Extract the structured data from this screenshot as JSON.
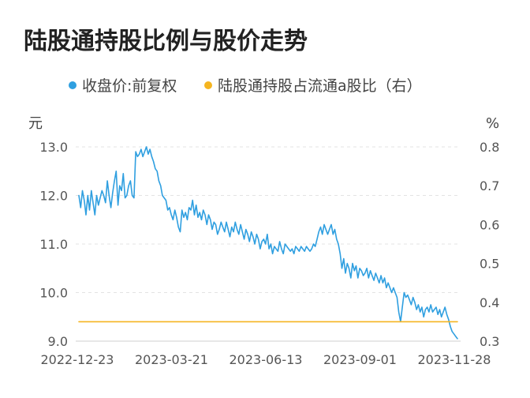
{
  "chart_data": {
    "type": "line",
    "title": "陆股通持股比例与股价走势",
    "legend_position": "top",
    "grid": true,
    "x_axis": {
      "ticks": [
        "2022-12-23",
        "2023-03-21",
        "2023-06-13",
        "2023-09-01",
        "2023-11-28"
      ]
    },
    "y_left": {
      "unit": "元",
      "ticks": [
        "13.0",
        "12.0",
        "11.0",
        "10.0",
        "9.0"
      ],
      "ylim": [
        9.0,
        13.0
      ]
    },
    "y_right": {
      "unit": "%",
      "ticks": [
        "0.8",
        "0.7",
        "0.6",
        "0.5",
        "0.4",
        "0.3"
      ],
      "ylim": [
        0.3,
        0.8
      ]
    },
    "series": [
      {
        "name": "收盘价:前复权",
        "axis": "left",
        "color": "#2f9fe0",
        "values": [
          12.0,
          11.75,
          12.1,
          11.9,
          11.6,
          12.0,
          11.7,
          12.1,
          11.85,
          11.6,
          12.0,
          11.8,
          11.95,
          12.1,
          12.0,
          11.85,
          12.3,
          12.0,
          11.75,
          12.05,
          12.3,
          12.5,
          11.8,
          12.2,
          12.1,
          12.45,
          11.95,
          12.0,
          12.2,
          12.3,
          12.0,
          11.95,
          12.9,
          12.8,
          12.85,
          12.95,
          12.8,
          12.9,
          13.0,
          12.85,
          12.95,
          12.8,
          12.7,
          12.55,
          12.5,
          12.3,
          12.2,
          12.0,
          11.95,
          11.9,
          11.7,
          11.75,
          11.6,
          11.5,
          11.7,
          11.55,
          11.35,
          11.25,
          11.7,
          11.55,
          11.65,
          11.5,
          11.75,
          11.7,
          11.9,
          11.6,
          11.8,
          11.55,
          11.65,
          11.5,
          11.7,
          11.6,
          11.4,
          11.6,
          11.5,
          11.3,
          11.45,
          11.4,
          11.2,
          11.3,
          11.45,
          11.35,
          11.25,
          11.45,
          11.3,
          11.15,
          11.35,
          11.25,
          11.45,
          11.3,
          11.2,
          11.4,
          11.25,
          11.1,
          11.3,
          11.2,
          11.05,
          11.25,
          11.15,
          11.0,
          11.2,
          11.1,
          10.9,
          11.05,
          11.1,
          11.0,
          11.2,
          10.9,
          11.0,
          10.8,
          10.95,
          10.9,
          10.85,
          11.05,
          10.9,
          10.8,
          11.0,
          10.95,
          10.9,
          10.85,
          10.9,
          10.8,
          10.95,
          10.9,
          10.85,
          10.95,
          10.9,
          10.85,
          10.95,
          10.9,
          10.85,
          10.9,
          11.0,
          10.95,
          11.1,
          11.25,
          11.35,
          11.2,
          11.4,
          11.3,
          11.2,
          11.3,
          11.4,
          11.2,
          11.3,
          11.1,
          11.0,
          10.8,
          10.5,
          10.7,
          10.4,
          10.6,
          10.5,
          10.3,
          10.6,
          10.45,
          10.55,
          10.3,
          10.5,
          10.45,
          10.35,
          10.4,
          10.5,
          10.3,
          10.45,
          10.35,
          10.25,
          10.4,
          10.3,
          10.2,
          10.35,
          10.2,
          10.3,
          10.1,
          10.2,
          10.1,
          10.0,
          10.1,
          10.0,
          9.9,
          9.6,
          9.4,
          9.7,
          10.0,
          9.9,
          9.95,
          9.85,
          9.75,
          9.9,
          9.8,
          9.65,
          9.75,
          9.6,
          9.7,
          9.5,
          9.65,
          9.7,
          9.6,
          9.75,
          9.6,
          9.65,
          9.7,
          9.55,
          9.65,
          9.5,
          9.6,
          9.7,
          9.55,
          9.45,
          9.3,
          9.2,
          9.15,
          9.1,
          9.05
        ]
      },
      {
        "name": "陆股通持股占流通a股比（右）",
        "axis": "right",
        "color": "#f5b520",
        "values": [
          0.35,
          0.35,
          0.35,
          0.35,
          0.35,
          0.35,
          0.35,
          0.35,
          0.35,
          0.35,
          0.35,
          0.35,
          0.35,
          0.35,
          0.35,
          0.35,
          0.35,
          0.35,
          0.35,
          0.35,
          0.35,
          0.35,
          0.35,
          0.35,
          0.35,
          0.35,
          0.35,
          0.35,
          0.35,
          0.35,
          0.35,
          0.35,
          0.35,
          0.35,
          0.35,
          0.35,
          0.35,
          0.35,
          0.35,
          0.35,
          0.35,
          0.35,
          0.35,
          0.35,
          0.35,
          0.35,
          0.35,
          0.35,
          0.35,
          0.35,
          0.35,
          0.35,
          0.35,
          0.35,
          0.35,
          0.35,
          0.35,
          0.35,
          0.35,
          0.35,
          0.35,
          0.35,
          0.35,
          0.35,
          0.35,
          0.35,
          0.35,
          0.35,
          0.35,
          0.35,
          0.35,
          0.35,
          0.35,
          0.35,
          0.35,
          0.35,
          0.35,
          0.35,
          0.35,
          0.35,
          0.35,
          0.35,
          0.35,
          0.35,
          0.35,
          0.35,
          0.35,
          0.35,
          0.35,
          0.35,
          0.35,
          0.35,
          0.35,
          0.35,
          0.35,
          0.35,
          0.35,
          0.35,
          0.35,
          0.35,
          0.35,
          0.35,
          0.35,
          0.35,
          0.35,
          0.35,
          0.35,
          0.35,
          0.35,
          0.35,
          0.35,
          0.35,
          0.35,
          0.35,
          0.35,
          0.35,
          0.35,
          0.35,
          0.35,
          0.35,
          0.35,
          0.35,
          0.35,
          0.35,
          0.35,
          0.35,
          0.35,
          0.35,
          0.35,
          0.35,
          0.35,
          0.35,
          0.35,
          0.35,
          0.35,
          0.35,
          0.35,
          0.35,
          0.35,
          0.35,
          0.35,
          0.35,
          0.35,
          0.35,
          0.35,
          0.35,
          0.35,
          0.35,
          0.35,
          0.35,
          0.35,
          0.35,
          0.35,
          0.35,
          0.35,
          0.35,
          0.35,
          0.35,
          0.35,
          0.35,
          0.35,
          0.35,
          0.35,
          0.35,
          0.35,
          0.35,
          0.35,
          0.35,
          0.35,
          0.35,
          0.35,
          0.35,
          0.35,
          0.35,
          0.35,
          0.35,
          0.35,
          0.35,
          0.35,
          0.35,
          0.35,
          0.35,
          0.35,
          0.35,
          0.35,
          0.35,
          0.35,
          0.35,
          0.35,
          0.35,
          0.35,
          0.35,
          0.35,
          0.35,
          0.35,
          0.35,
          0.35,
          0.35,
          0.35,
          0.35,
          0.35,
          0.35,
          0.35,
          0.35,
          0.35,
          0.35,
          0.35,
          0.35,
          0.35,
          0.35,
          0.35,
          0.35,
          0.35,
          0.35,
          0.35,
          0.35,
          0.35,
          0.35,
          0.35,
          0.35,
          0.35,
          0.35
        ]
      }
    ]
  },
  "header": {
    "title": "陆股通持股比例与股价走势"
  },
  "legend": [
    {
      "label": "收盘价:前复权",
      "color": "#2f9fe0"
    },
    {
      "label": "陆股通持股占流通a股比（右）",
      "color": "#f5b520"
    }
  ]
}
